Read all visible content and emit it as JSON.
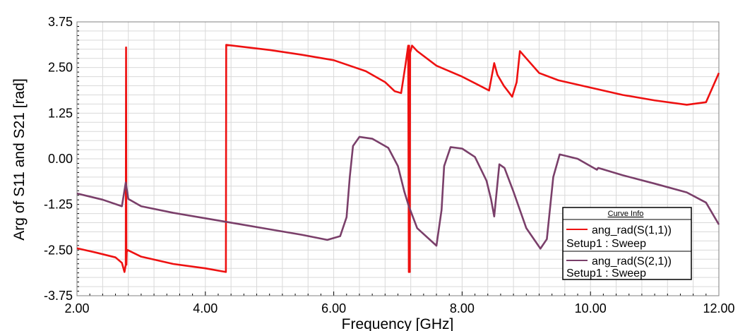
{
  "chart_data": {
    "type": "line",
    "title": "",
    "xlabel": "Frequency [GHz]",
    "ylabel": "Arg of S11 and S21 [rad]",
    "xlim": [
      2.0,
      12.0
    ],
    "ylim": [
      -3.75,
      3.75
    ],
    "x_ticks": [
      "2.00",
      "4.00",
      "6.00",
      "8.00",
      "10.00",
      "12.00"
    ],
    "y_ticks": [
      "3.75",
      "2.50",
      "1.25",
      "0.00",
      "-1.25",
      "-2.50",
      "-3.75"
    ],
    "x_tick_values": [
      2,
      4,
      6,
      8,
      10,
      12
    ],
    "y_tick_values": [
      3.75,
      2.5,
      1.25,
      0,
      -1.25,
      -2.5,
      -3.75
    ],
    "grid": true,
    "legend": {
      "title": "Curve Info",
      "placement": "bottom-right",
      "entries": [
        {
          "label": "ang_rad(S(1,1))",
          "sublabel": "Setup1 : Sweep"
        },
        {
          "label": "ang_rad(S(2,1))",
          "sublabel": "Setup1 : Sweep"
        }
      ]
    },
    "series": [
      {
        "name": "ang_rad(S(1,1))",
        "color": "#ee1111",
        "points": [
          [
            2.0,
            -2.45
          ],
          [
            2.3,
            -2.57
          ],
          [
            2.6,
            -2.7
          ],
          [
            2.7,
            -2.85
          ],
          [
            2.74,
            -3.1
          ],
          [
            2.76,
            -2.9
          ],
          [
            2.765,
            3.05
          ],
          [
            2.77,
            -2.9
          ],
          [
            2.775,
            -2.55
          ],
          [
            2.79,
            -2.5
          ],
          [
            3.0,
            -2.68
          ],
          [
            3.5,
            -2.88
          ],
          [
            4.0,
            -3.0
          ],
          [
            4.32,
            -3.1
          ],
          [
            4.325,
            3.12
          ],
          [
            5.0,
            2.98
          ],
          [
            5.5,
            2.85
          ],
          [
            6.0,
            2.7
          ],
          [
            6.5,
            2.4
          ],
          [
            6.8,
            2.1
          ],
          [
            6.95,
            1.85
          ],
          [
            7.05,
            1.8
          ],
          [
            7.12,
            2.6
          ],
          [
            7.16,
            3.1
          ],
          [
            7.17,
            -3.1
          ],
          [
            7.175,
            3.1
          ],
          [
            7.185,
            -3.1
          ],
          [
            7.19,
            2.9
          ],
          [
            7.22,
            3.1
          ],
          [
            7.3,
            2.95
          ],
          [
            7.6,
            2.55
          ],
          [
            8.0,
            2.25
          ],
          [
            8.3,
            1.98
          ],
          [
            8.42,
            1.87
          ],
          [
            8.5,
            2.62
          ],
          [
            8.55,
            2.3
          ],
          [
            8.65,
            2.0
          ],
          [
            8.78,
            1.7
          ],
          [
            8.85,
            2.1
          ],
          [
            8.9,
            2.95
          ],
          [
            8.95,
            2.85
          ],
          [
            9.2,
            2.35
          ],
          [
            9.5,
            2.15
          ],
          [
            10.0,
            1.95
          ],
          [
            10.5,
            1.75
          ],
          [
            11.0,
            1.6
          ],
          [
            11.5,
            1.48
          ],
          [
            11.8,
            1.55
          ],
          [
            12.0,
            2.35
          ]
        ]
      },
      {
        "name": "ang_rad(S(2,1))",
        "color": "#7a3f6a",
        "points": [
          [
            2.0,
            -0.95
          ],
          [
            2.4,
            -1.12
          ],
          [
            2.7,
            -1.3
          ],
          [
            2.76,
            -0.65
          ],
          [
            2.8,
            -1.1
          ],
          [
            3.0,
            -1.3
          ],
          [
            3.5,
            -1.48
          ],
          [
            4.0,
            -1.63
          ],
          [
            4.5,
            -1.78
          ],
          [
            5.0,
            -1.93
          ],
          [
            5.5,
            -2.08
          ],
          [
            5.9,
            -2.22
          ],
          [
            6.1,
            -2.12
          ],
          [
            6.2,
            -1.6
          ],
          [
            6.25,
            -0.5
          ],
          [
            6.3,
            0.35
          ],
          [
            6.4,
            0.6
          ],
          [
            6.6,
            0.55
          ],
          [
            6.85,
            0.3
          ],
          [
            7.0,
            -0.2
          ],
          [
            7.1,
            -0.9
          ],
          [
            7.17,
            -1.3
          ],
          [
            7.3,
            -1.9
          ],
          [
            7.6,
            -2.38
          ],
          [
            7.68,
            -1.4
          ],
          [
            7.72,
            -0.2
          ],
          [
            7.82,
            0.32
          ],
          [
            8.0,
            0.28
          ],
          [
            8.2,
            0.05
          ],
          [
            8.38,
            -0.6
          ],
          [
            8.45,
            -1.1
          ],
          [
            8.5,
            -1.58
          ],
          [
            8.58,
            -0.15
          ],
          [
            8.66,
            -0.25
          ],
          [
            8.8,
            -0.9
          ],
          [
            9.0,
            -1.9
          ],
          [
            9.22,
            -2.46
          ],
          [
            9.32,
            -2.2
          ],
          [
            9.42,
            -0.5
          ],
          [
            9.52,
            0.12
          ],
          [
            9.8,
            0.0
          ],
          [
            10.0,
            -0.2
          ],
          [
            10.1,
            -0.3
          ],
          [
            10.12,
            -0.25
          ],
          [
            10.5,
            -0.45
          ],
          [
            11.0,
            -0.68
          ],
          [
            11.5,
            -0.92
          ],
          [
            11.8,
            -1.2
          ],
          [
            12.0,
            -1.8
          ]
        ]
      }
    ]
  }
}
